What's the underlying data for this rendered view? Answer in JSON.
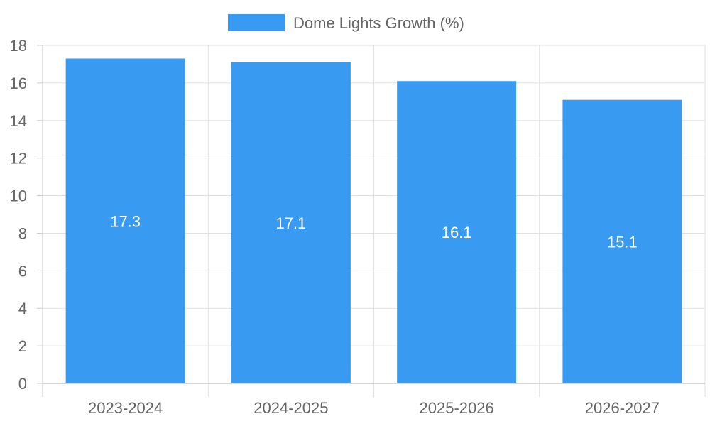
{
  "chart_data": {
    "type": "bar",
    "categories": [
      "2023-2024",
      "2024-2025",
      "2025-2026",
      "2026-2027"
    ],
    "series": [
      {
        "name": "Dome Lights Growth (%)",
        "values": [
          17.3,
          17.1,
          16.1,
          15.1
        ],
        "color": "#389BF1"
      }
    ],
    "ylim": [
      0,
      18
    ],
    "yticks": [
      0,
      2,
      4,
      6,
      8,
      10,
      12,
      14,
      16,
      18
    ],
    "grid": true,
    "legend": "top-center",
    "data_labels": true
  }
}
